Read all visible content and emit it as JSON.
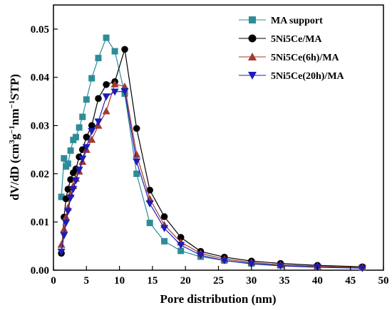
{
  "chart_data": {
    "type": "line",
    "title": "",
    "xlabel": "Pore distribution (nm)",
    "ylabel": "dV/dD (cm³g⁻¹nm⁻¹STP)",
    "ylabel_parts": {
      "pre": "dV/dD (cm",
      "sup1": "3",
      "mid1": "g",
      "sup2": "−1",
      "mid2": "nm",
      "sup3": "−1",
      "post": "STP)"
    },
    "xlim": [
      0,
      50
    ],
    "ylim": [
      0,
      0.055
    ],
    "xticks": [
      0,
      5,
      10,
      15,
      20,
      25,
      30,
      35,
      40,
      45,
      50
    ],
    "yticks": [
      0.0,
      0.01,
      0.02,
      0.03,
      0.04,
      0.05
    ],
    "ytick_labels": [
      "0.00",
      "0.01",
      "0.02",
      "0.03",
      "0.04",
      "0.05"
    ],
    "grid": false,
    "legend_position": "top-right",
    "series": [
      {
        "name": "MA support",
        "color": "#2e8c99",
        "marker": "square",
        "x": [
          1.2,
          1.6,
          1.9,
          2.2,
          2.6,
          3.0,
          3.4,
          3.9,
          4.4,
          5.0,
          5.8,
          6.8,
          8.0,
          9.3,
          10.8,
          12.6,
          14.6,
          16.8,
          19.3,
          22.3,
          25.9,
          30.0,
          34.4,
          40.0,
          46.8
        ],
        "y": [
          0.0152,
          0.0232,
          0.0215,
          0.0221,
          0.0248,
          0.027,
          0.0276,
          0.0296,
          0.0318,
          0.0354,
          0.0398,
          0.044,
          0.0482,
          0.0454,
          0.0366,
          0.02,
          0.0098,
          0.006,
          0.004,
          0.0028,
          0.002,
          0.0014,
          0.001,
          0.0007,
          0.0005
        ]
      },
      {
        "name": "5Ni5Ce/MA",
        "color": "#000000",
        "marker": "circle",
        "x": [
          1.2,
          1.6,
          1.9,
          2.2,
          2.6,
          3.0,
          3.4,
          3.9,
          4.4,
          5.0,
          5.8,
          6.8,
          8.0,
          9.3,
          10.8,
          12.6,
          14.6,
          16.8,
          19.3,
          22.3,
          25.9,
          30.0,
          34.4,
          40.0,
          46.8
        ],
        "y": [
          0.0035,
          0.011,
          0.0148,
          0.0168,
          0.0188,
          0.0202,
          0.021,
          0.0235,
          0.025,
          0.0276,
          0.03,
          0.0356,
          0.0385,
          0.0391,
          0.0458,
          0.0294,
          0.0166,
          0.0111,
          0.0068,
          0.0039,
          0.0027,
          0.0019,
          0.0014,
          0.001,
          0.0007
        ]
      },
      {
        "name": "5Ni5Ce(6h)/MA",
        "color": "#a33a2a",
        "marker": "triangle-up",
        "x": [
          1.2,
          1.6,
          1.9,
          2.2,
          2.6,
          3.0,
          3.4,
          3.9,
          4.4,
          5.0,
          5.8,
          6.8,
          8.0,
          9.3,
          10.8,
          12.6,
          14.6,
          16.8,
          19.3,
          22.3,
          25.9,
          30.0,
          34.4,
          40.0,
          46.8
        ],
        "y": [
          0.0053,
          0.0085,
          0.011,
          0.013,
          0.0158,
          0.0175,
          0.019,
          0.0205,
          0.0225,
          0.025,
          0.0271,
          0.03,
          0.033,
          0.0386,
          0.0381,
          0.024,
          0.0148,
          0.0094,
          0.0058,
          0.0035,
          0.0023,
          0.0016,
          0.0011,
          0.0008,
          0.0006
        ]
      },
      {
        "name": "5Ni5Ce(20h)/MA",
        "color": "#1c1cb8",
        "marker": "triangle-down",
        "x": [
          1.2,
          1.6,
          1.9,
          2.2,
          2.6,
          3.0,
          3.4,
          3.9,
          4.4,
          5.0,
          5.8,
          6.8,
          8.0,
          9.3,
          10.8,
          12.6,
          14.6,
          16.8,
          19.3,
          22.3,
          25.9,
          30.0,
          34.4,
          40.0,
          46.8
        ],
        "y": [
          0.0038,
          0.0072,
          0.0098,
          0.0122,
          0.015,
          0.0168,
          0.0186,
          0.0208,
          0.0231,
          0.0255,
          0.0288,
          0.0308,
          0.036,
          0.037,
          0.0371,
          0.0225,
          0.0138,
          0.0087,
          0.0052,
          0.0031,
          0.002,
          0.0013,
          0.0009,
          0.0006,
          0.0004
        ]
      }
    ]
  }
}
